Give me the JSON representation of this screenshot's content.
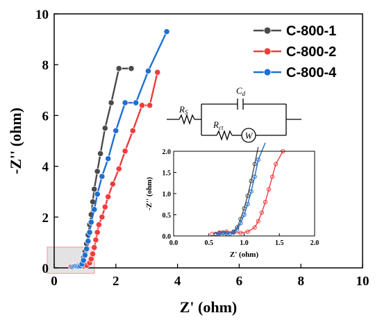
{
  "chart_data": {
    "type": "scatter",
    "xlabel": "Z' (ohm)",
    "ylabel": "-Z'' (ohm)",
    "xlim": [
      0,
      10
    ],
    "ylim": [
      0,
      10
    ],
    "xticks": [
      "0",
      "2",
      "4",
      "6",
      "8",
      "10"
    ],
    "yticks": [
      "0",
      "2",
      "4",
      "6",
      "8",
      "10"
    ],
    "grid": false,
    "legend_position": "top-right",
    "series": [
      {
        "name": "C-800-1",
        "color": "#4a4a4a",
        "x": [
          0.6,
          0.65,
          0.7,
          0.75,
          0.8,
          0.85,
          0.9,
          0.95,
          1.0,
          1.05,
          1.1,
          1.15,
          1.2,
          1.25,
          1.3,
          1.4,
          1.5,
          1.65,
          1.85,
          2.1,
          2.5
        ],
        "y": [
          0.05,
          0.07,
          0.08,
          0.07,
          0.06,
          0.1,
          0.2,
          0.4,
          0.65,
          0.95,
          1.3,
          1.7,
          2.1,
          2.6,
          3.1,
          3.8,
          4.5,
          5.5,
          6.5,
          7.85,
          7.85
        ]
      },
      {
        "name": "C-800-2",
        "color": "#f03c3c",
        "x": [
          0.55,
          0.65,
          0.75,
          0.85,
          0.95,
          1.05,
          1.15,
          1.2,
          1.25,
          1.3,
          1.35,
          1.4,
          1.45,
          1.55,
          1.65,
          1.75,
          1.9,
          2.1,
          2.3,
          2.55,
          2.85,
          3.1,
          3.35
        ],
        "y": [
          0.05,
          0.08,
          0.1,
          0.08,
          0.07,
          0.1,
          0.2,
          0.35,
          0.55,
          0.8,
          1.1,
          1.4,
          1.7,
          2.0,
          2.4,
          2.8,
          3.3,
          3.9,
          4.6,
          5.4,
          6.4,
          6.4,
          7.7
        ]
      },
      {
        "name": "C-800-4",
        "color": "#1f6fd1",
        "x": [
          0.6,
          0.65,
          0.7,
          0.75,
          0.8,
          0.85,
          0.9,
          0.95,
          1.0,
          1.05,
          1.1,
          1.15,
          1.2,
          1.3,
          1.4,
          1.55,
          1.75,
          2.0,
          2.3,
          2.65,
          3.05,
          3.65
        ],
        "y": [
          0.04,
          0.06,
          0.07,
          0.06,
          0.06,
          0.08,
          0.15,
          0.3,
          0.5,
          0.75,
          1.05,
          1.4,
          1.8,
          2.3,
          2.9,
          3.6,
          4.3,
          5.4,
          6.5,
          6.5,
          7.75,
          9.3
        ]
      }
    ],
    "inset": {
      "xlabel": "Z' (ohm)",
      "ylabel": "-Z'' (ohm)",
      "xlim": [
        0,
        2
      ],
      "ylim": [
        0,
        2
      ],
      "xticks": [
        "0.0",
        "0.5",
        "1.0",
        "1.5",
        "2.0"
      ],
      "yticks": [
        "0.0",
        "0.5",
        "1.0",
        "1.5",
        "2.0"
      ]
    },
    "circuit": {
      "rs": "R",
      "rs_sub": "S",
      "cd": "C",
      "cd_sub": "d",
      "rct": "R",
      "rct_sub": "ct",
      "w": "W"
    },
    "zoom_box_color": "#f3a6a6"
  }
}
